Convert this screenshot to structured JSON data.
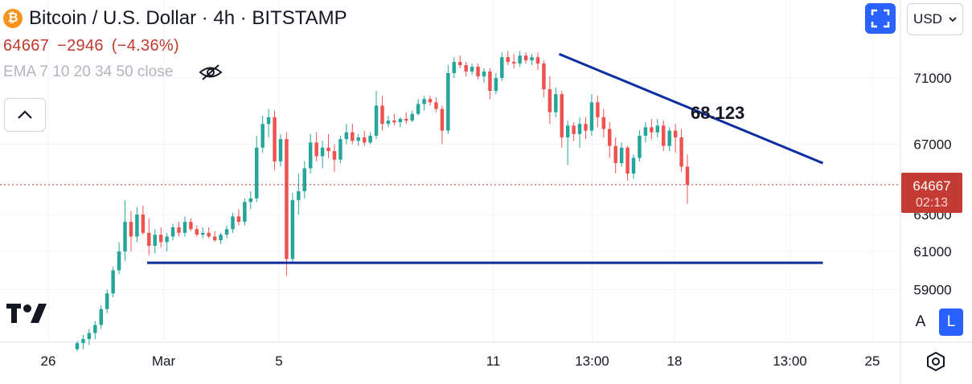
{
  "header": {
    "title": "Bitcoin / U.S. Dollar · 4h · BITSTAMP",
    "coin_symbol": "₿",
    "price": "64667",
    "change": "−2946",
    "change_pct": "(−4.36%)",
    "indicator": "EMA 7 10 20 34 50 close"
  },
  "toolbar": {
    "currency": "USD"
  },
  "axis_buttons": {
    "auto": "A",
    "log": "L"
  },
  "colors": {
    "up": "#26a69a",
    "down": "#ef5350",
    "trendline": "#0d2ea1",
    "accent": "#2962ff",
    "price_label": "#c33b32"
  },
  "chart_data": {
    "type": "candlestick",
    "symbol": "Bitcoin / U.S. Dollar",
    "timeframe": "4h",
    "exchange": "BITSTAMP",
    "x_ticks": [
      "26",
      "Mar",
      "5",
      "11",
      "13:00",
      "18",
      "13:00",
      "25"
    ],
    "y_ticks": [
      71000,
      67000,
      63000,
      61000,
      59000
    ],
    "last_price": 64667,
    "countdown": "02:13",
    "annotation": "68.123",
    "lines": [
      {
        "kind": "support",
        "from": [
          "Feb 29",
          60400
        ],
        "to": [
          "Mar 21",
          60400
        ]
      },
      {
        "kind": "resistance",
        "from": [
          "Mar 13",
          72500
        ],
        "to": [
          "Mar 21",
          65900
        ]
      }
    ],
    "candles": [
      [
        56000,
        56400,
        55900,
        56300
      ],
      [
        56300,
        56700,
        56000,
        56500
      ],
      [
        56500,
        57000,
        56200,
        56800
      ],
      [
        56800,
        57400,
        56500,
        57200
      ],
      [
        57200,
        58200,
        57000,
        58000
      ],
      [
        58000,
        59000,
        57800,
        58800
      ],
      [
        58800,
        60200,
        58600,
        60000
      ],
      [
        60000,
        61500,
        59800,
        61000
      ],
      [
        61000,
        63800,
        60500,
        62600
      ],
      [
        62600,
        63200,
        61000,
        61800
      ],
      [
        61800,
        63400,
        61500,
        63000
      ],
      [
        63000,
        63500,
        61900,
        62000
      ],
      [
        62000,
        62800,
        60800,
        61300
      ],
      [
        61300,
        62200,
        60900,
        61900
      ],
      [
        61900,
        62300,
        61200,
        61500
      ],
      [
        61500,
        62000,
        61000,
        61800
      ],
      [
        61800,
        62500,
        61600,
        62300
      ],
      [
        62300,
        62600,
        61800,
        62000
      ],
      [
        62000,
        62900,
        61800,
        62600
      ],
      [
        62600,
        62800,
        62100,
        62200
      ],
      [
        62200,
        62400,
        61800,
        61900
      ],
      [
        61900,
        62300,
        61700,
        62000
      ],
      [
        62000,
        62300,
        61700,
        61800
      ],
      [
        61800,
        62100,
        61500,
        61600
      ],
      [
        61600,
        62000,
        61400,
        61900
      ],
      [
        61900,
        62400,
        61700,
        62200
      ],
      [
        62200,
        63100,
        62000,
        62900
      ],
      [
        62900,
        63300,
        62400,
        62600
      ],
      [
        62600,
        63900,
        62400,
        63700
      ],
      [
        63700,
        64300,
        63300,
        63900
      ],
      [
        63900,
        67500,
        63700,
        66800
      ],
      [
        66800,
        68700,
        66500,
        68200
      ],
      [
        68200,
        69100,
        67400,
        68600
      ],
      [
        68600,
        69000,
        65500,
        66000
      ],
      [
        66000,
        67600,
        65700,
        67300
      ],
      [
        67300,
        67700,
        59700,
        60600
      ],
      [
        60600,
        64200,
        60400,
        63800
      ],
      [
        63800,
        65300,
        63000,
        64300
      ],
      [
        64300,
        66000,
        63900,
        65600
      ],
      [
        65600,
        67600,
        65300,
        67100
      ],
      [
        67100,
        67700,
        66000,
        66300
      ],
      [
        66300,
        67200,
        65600,
        66800
      ],
      [
        66800,
        67600,
        66200,
        66600
      ],
      [
        66600,
        67000,
        65400,
        66100
      ],
      [
        66100,
        67500,
        65900,
        67300
      ],
      [
        67300,
        68200,
        67000,
        67700
      ],
      [
        67700,
        68200,
        67000,
        67200
      ],
      [
        67200,
        67600,
        66900,
        67400
      ],
      [
        67400,
        67800,
        66900,
        67100
      ],
      [
        67100,
        67700,
        67000,
        67500
      ],
      [
        67500,
        70200,
        67300,
        69300
      ],
      [
        69300,
        69900,
        67800,
        68200
      ],
      [
        68200,
        68700,
        68000,
        68400
      ],
      [
        68400,
        68800,
        68100,
        68300
      ],
      [
        68300,
        68600,
        68000,
        68500
      ],
      [
        68500,
        68900,
        68200,
        68400
      ],
      [
        68400,
        69000,
        68300,
        68800
      ],
      [
        68800,
        69700,
        68700,
        69400
      ],
      [
        69400,
        69900,
        69000,
        69700
      ],
      [
        69700,
        69900,
        69300,
        69500
      ],
      [
        69500,
        69800,
        68900,
        69100
      ],
      [
        69100,
        69300,
        67000,
        67800
      ],
      [
        67800,
        71800,
        67600,
        71300
      ],
      [
        71300,
        72300,
        71000,
        72000
      ],
      [
        72000,
        72400,
        71600,
        71800
      ],
      [
        71800,
        72000,
        71100,
        71400
      ],
      [
        71400,
        71900,
        71200,
        71700
      ],
      [
        71700,
        71900,
        70900,
        71100
      ],
      [
        71100,
        71600,
        70700,
        71400
      ],
      [
        71400,
        71600,
        69700,
        70200
      ],
      [
        70200,
        71300,
        70000,
        71000
      ],
      [
        71000,
        72600,
        70800,
        72300
      ],
      [
        72300,
        72700,
        71800,
        72000
      ],
      [
        72000,
        72500,
        71600,
        71900
      ],
      [
        71900,
        72700,
        71700,
        72400
      ],
      [
        72400,
        72600,
        71900,
        72100
      ],
      [
        72100,
        72500,
        71800,
        72300
      ],
      [
        72300,
        72600,
        71500,
        71900
      ],
      [
        71900,
        72100,
        69800,
        70300
      ],
      [
        70300,
        71100,
        68200,
        68900
      ],
      [
        68900,
        70400,
        68600,
        70000
      ],
      [
        70000,
        70200,
        66800,
        67400
      ],
      [
        67400,
        68400,
        65800,
        68100
      ],
      [
        68100,
        68300,
        67200,
        67600
      ],
      [
        67600,
        68600,
        66800,
        68200
      ],
      [
        68200,
        68600,
        67300,
        67800
      ],
      [
        67800,
        70000,
        67500,
        69500
      ],
      [
        69500,
        69900,
        68000,
        68600
      ],
      [
        68600,
        69100,
        67400,
        67900
      ],
      [
        67900,
        68300,
        66200,
        66900
      ],
      [
        66900,
        67400,
        65300,
        65900
      ],
      [
        65900,
        67100,
        65700,
        66800
      ],
      [
        66800,
        66900,
        64900,
        65300
      ],
      [
        65300,
        66400,
        65000,
        66200
      ],
      [
        66200,
        67800,
        66000,
        67500
      ],
      [
        67500,
        68300,
        67100,
        68000
      ],
      [
        68000,
        68500,
        67300,
        67700
      ],
      [
        67700,
        68500,
        67400,
        68100
      ],
      [
        68100,
        68400,
        66600,
        66900
      ],
      [
        66900,
        68000,
        66600,
        67800
      ],
      [
        67800,
        68200,
        66500,
        67400
      ],
      [
        67400,
        67900,
        65400,
        65700
      ],
      [
        65700,
        66400,
        63600,
        64667
      ]
    ]
  }
}
